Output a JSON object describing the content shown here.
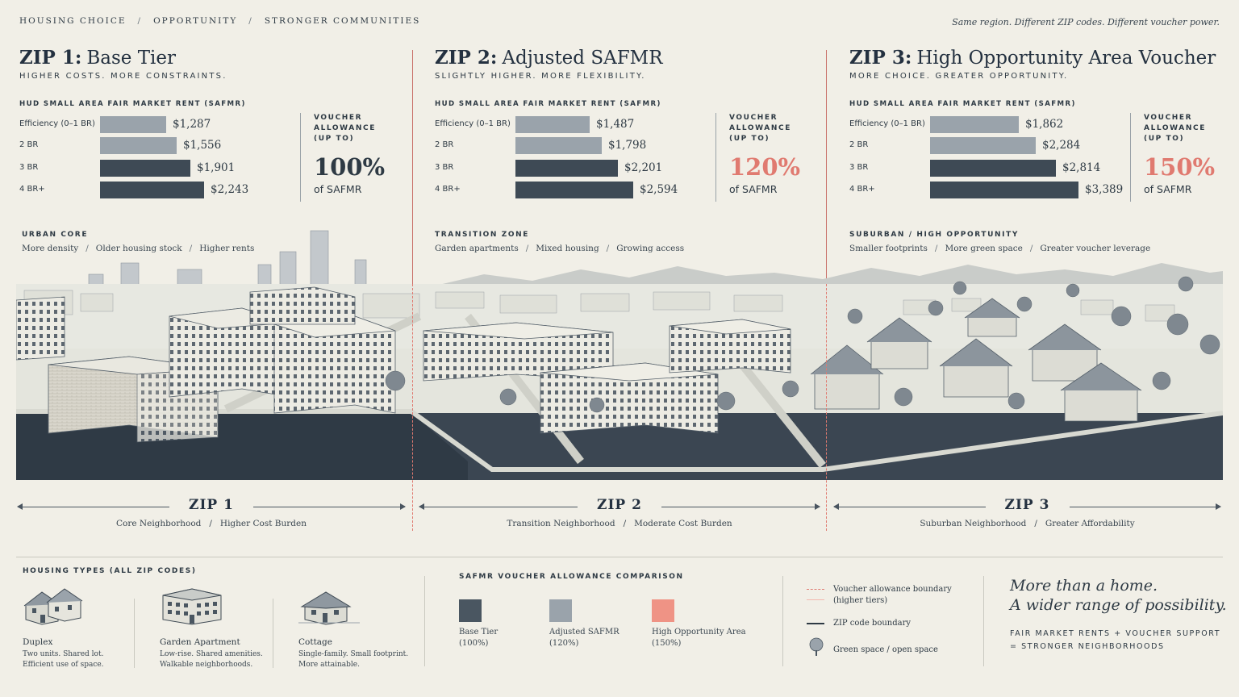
{
  "header": {
    "nav": [
      "Housing Choice",
      "Opportunity",
      "Stronger Communities"
    ],
    "nav_sep": "/",
    "tagline": "Same region. Different ZIP codes. Different voucher power."
  },
  "colors": {
    "base": "#4a5661",
    "adjusted": "#9aa3ab",
    "high": "#ef9385",
    "accent_red": "#e07a70",
    "ink": "#2e3a44"
  },
  "zips": [
    {
      "num": "ZIP 1:",
      "name": "Base Tier",
      "subtitle": "Higher costs. More constraints.",
      "safmr_heading": "HUD Small Area Fair Market Rent (SAFMR)",
      "rents": [
        {
          "label": "Efficiency (0–1 BR)",
          "value": 1287,
          "display": "$1,287"
        },
        {
          "label": "2 BR",
          "value": 1556,
          "display": "$1,556"
        },
        {
          "label": "3 BR",
          "value": 1901,
          "display": "$1,901"
        },
        {
          "label": "4 BR+",
          "value": 2243,
          "display": "$2,243"
        }
      ],
      "voucher_heading": [
        "Voucher",
        "Allowance",
        "(Up To)"
      ],
      "voucher_pct": "100%",
      "voucher_of": "of SAFMR",
      "area_heading": "Urban Core",
      "area_desc": [
        "More density",
        "Older housing stock",
        "Higher rents"
      ],
      "zip_label": "ZIP 1",
      "zip_caption": [
        "Core Neighborhood",
        "Higher Cost Burden"
      ]
    },
    {
      "num": "ZIP 2:",
      "name": "Adjusted SAFMR",
      "subtitle": "Slightly higher. More flexibility.",
      "safmr_heading": "HUD Small Area Fair Market Rent (SAFMR)",
      "rents": [
        {
          "label": "Efficiency (0–1 BR)",
          "value": 1487,
          "display": "$1,487"
        },
        {
          "label": "2 BR",
          "value": 1798,
          "display": "$1,798"
        },
        {
          "label": "3 BR",
          "value": 2201,
          "display": "$2,201"
        },
        {
          "label": "4 BR+",
          "value": 2594,
          "display": "$2,594"
        }
      ],
      "voucher_heading": [
        "Voucher",
        "Allowance",
        "(Up To)"
      ],
      "voucher_pct": "120%",
      "voucher_of": "of SAFMR",
      "area_heading": "Transition Zone",
      "area_desc": [
        "Garden apartments",
        "Mixed housing",
        "Growing access"
      ],
      "zip_label": "ZIP 2",
      "zip_caption": [
        "Transition Neighborhood",
        "Moderate Cost Burden"
      ]
    },
    {
      "num": "ZIP 3:",
      "name": "High Opportunity Area Voucher",
      "subtitle": "More choice. Greater opportunity.",
      "safmr_heading": "HUD Small Area Fair Market Rent (SAFMR)",
      "rents": [
        {
          "label": "Efficiency (0–1 BR)",
          "value": 1862,
          "display": "$1,862"
        },
        {
          "label": "2 BR",
          "value": 2284,
          "display": "$2,284"
        },
        {
          "label": "3 BR",
          "value": 2814,
          "display": "$2,814"
        },
        {
          "label": "4 BR+",
          "value": 3389,
          "display": "$3,389"
        }
      ],
      "voucher_heading": [
        "Voucher",
        "Allowance",
        "(Up To)"
      ],
      "voucher_pct": "150%",
      "voucher_of": "of SAFMR",
      "area_heading": "Suburban / High Opportunity",
      "area_desc": [
        "Smaller footprints",
        "More green space",
        "Greater voucher leverage"
      ],
      "zip_label": "ZIP 3",
      "zip_caption": [
        "Suburban Neighborhood",
        "Greater Affordability"
      ]
    }
  ],
  "housing_types": {
    "heading": "Housing Types (All ZIP Codes)",
    "items": [
      {
        "icon": "duplex-icon",
        "name": "Duplex",
        "desc": [
          "Two units. Shared lot.",
          "Efficient use of space."
        ]
      },
      {
        "icon": "garden-apartment-icon",
        "name": "Garden Apartment",
        "desc": [
          "Low-rise. Shared amenities.",
          "Walkable neighborhoods."
        ]
      },
      {
        "icon": "cottage-icon",
        "name": "Cottage",
        "desc": [
          "Single-family. Small footprint.",
          "More attainable."
        ]
      }
    ]
  },
  "comparison": {
    "heading": "SAFMR Voucher Allowance Comparison",
    "items": [
      {
        "name": "Base Tier",
        "pct": "(100%)"
      },
      {
        "name": "Adjusted SAFMR",
        "pct": "(120%)"
      },
      {
        "name": "High Opportunity Area",
        "pct": "(150%)"
      }
    ]
  },
  "legend": {
    "items": [
      {
        "icon": "dashed-line-icon",
        "text": [
          "Voucher allowance boundary",
          "(higher tiers)"
        ]
      },
      {
        "icon": "solid-line-icon",
        "text": [
          "ZIP code boundary"
        ]
      },
      {
        "icon": "tree-icon",
        "text": [
          "Green space / open space"
        ]
      }
    ]
  },
  "closing": {
    "lines": [
      "More than a home.",
      "A wider range of possibility."
    ],
    "equation": [
      "Fair Market Rents + Voucher Support",
      "= Stronger Neighborhoods"
    ]
  }
}
